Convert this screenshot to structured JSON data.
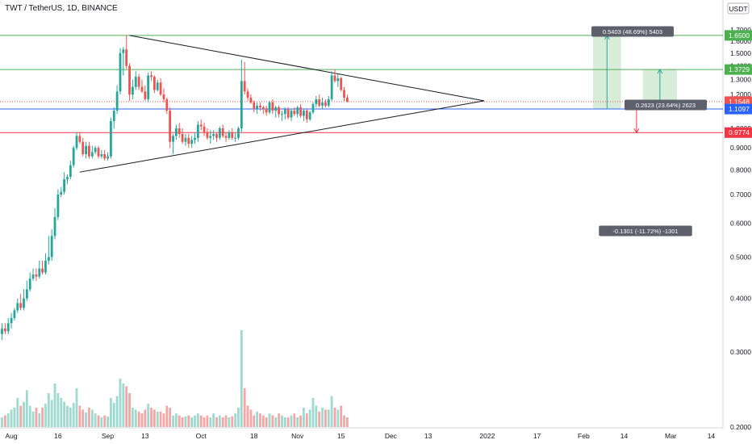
{
  "header": {
    "title": "TWT / TetherUS, 1D, BINANCE"
  },
  "axis": {
    "currency": "USDT",
    "yticks": [
      "1.7000",
      "1.6000",
      "1.5000",
      "1.4000",
      "1.3000",
      "1.2000",
      "1.1000",
      "1.0000",
      "0.9000",
      "0.8000",
      "0.7000",
      "0.6000",
      "0.5000",
      "0.4000",
      "0.3000",
      "0.2000"
    ],
    "xticks": [
      "Aug",
      "16",
      "Sep",
      "13",
      "Oct",
      "18",
      "Nov",
      "15",
      "Dec",
      "13",
      "2022",
      "17",
      "Feb",
      "14",
      "Mar",
      "14"
    ]
  },
  "price_labels": {
    "target2": "1.6500",
    "target1": "1.3729",
    "current": "1.1548",
    "entry": "1.1097",
    "stop": "0.9774"
  },
  "annotations": {
    "long2": "0.5403 (48.69%) 5403",
    "long1": "0.2623 (23.64%) 2623",
    "short": "-0.1301 (-11.72%) -1301"
  },
  "colors": {
    "up": "#26a69a",
    "down": "#ef5350",
    "green_line": "#4caf50",
    "blue_line": "#2962ff",
    "red_line": "#f23645",
    "vol_up": "#9ed9d0",
    "vol_down": "#f4a6a5"
  },
  "chart_data": {
    "type": "candlestick",
    "x": [
      "2021-07-29",
      "2021-07-30",
      "2021-07-31",
      "2021-08-01",
      "2021-08-02",
      "2021-08-03",
      "2021-08-04",
      "2021-08-05",
      "2021-08-06",
      "2021-08-07",
      "2021-08-08",
      "2021-08-09",
      "2021-08-10",
      "2021-08-11",
      "2021-08-12",
      "2021-08-13",
      "2021-08-14",
      "2021-08-15",
      "2021-08-16",
      "2021-08-17",
      "2021-08-18",
      "2021-08-19",
      "2021-08-20",
      "2021-08-21",
      "2021-08-22",
      "2021-08-23",
      "2021-08-24",
      "2021-08-25",
      "2021-08-26",
      "2021-08-27",
      "2021-08-28",
      "2021-08-29",
      "2021-08-30",
      "2021-08-31",
      "2021-09-01",
      "2021-09-02",
      "2021-09-03",
      "2021-09-04",
      "2021-09-05",
      "2021-09-06",
      "2021-09-07",
      "2021-09-08",
      "2021-09-09",
      "2021-09-10",
      "2021-09-11",
      "2021-09-12",
      "2021-09-13",
      "2021-09-14",
      "2021-09-15",
      "2021-09-16",
      "2021-09-17",
      "2021-09-18",
      "2021-09-19",
      "2021-09-20",
      "2021-09-21",
      "2021-09-22",
      "2021-09-23",
      "2021-09-24",
      "2021-09-25",
      "2021-09-26",
      "2021-09-27",
      "2021-09-28",
      "2021-09-29",
      "2021-09-30",
      "2021-10-01",
      "2021-10-02",
      "2021-10-03",
      "2021-10-04",
      "2021-10-05",
      "2021-10-06",
      "2021-10-07",
      "2021-10-08",
      "2021-10-09",
      "2021-10-10",
      "2021-10-11",
      "2021-10-12",
      "2021-10-13",
      "2021-10-14",
      "2021-10-15",
      "2021-10-16",
      "2021-10-17",
      "2021-10-18",
      "2021-10-19",
      "2021-10-20",
      "2021-10-21",
      "2021-10-22",
      "2021-10-23",
      "2021-10-24",
      "2021-10-25",
      "2021-10-26",
      "2021-10-27",
      "2021-10-28",
      "2021-10-29",
      "2021-10-30",
      "2021-10-31",
      "2021-11-01",
      "2021-11-02",
      "2021-11-03",
      "2021-11-04",
      "2021-11-05",
      "2021-11-06",
      "2021-11-07",
      "2021-11-08",
      "2021-11-09",
      "2021-11-10",
      "2021-11-11",
      "2021-11-12",
      "2021-11-13",
      "2021-11-14",
      "2021-11-15",
      "2021-11-16",
      "2021-11-17"
    ],
    "open": [
      0.33,
      0.34,
      0.335,
      0.35,
      0.36,
      0.375,
      0.39,
      0.38,
      0.4,
      0.42,
      0.445,
      0.455,
      0.45,
      0.47,
      0.46,
      0.49,
      0.5,
      0.56,
      0.62,
      0.7,
      0.71,
      0.76,
      0.77,
      0.82,
      0.9,
      0.96,
      0.93,
      0.87,
      0.91,
      0.86,
      0.88,
      0.9,
      0.86,
      0.87,
      0.85,
      0.86,
      1.04,
      1.1,
      1.22,
      1.5,
      1.53,
      1.4,
      1.2,
      1.25,
      1.32,
      1.25,
      1.22,
      1.17,
      1.33,
      1.32,
      1.23,
      1.28,
      1.2,
      1.17,
      1.1,
      0.93,
      0.96,
      1.0,
      0.97,
      0.93,
      0.95,
      0.92,
      0.94,
      0.95,
      1.02,
      1.01,
      0.98,
      0.95,
      0.96,
      0.97,
      0.95,
      1.0,
      0.96,
      0.95,
      0.98,
      0.95,
      0.95,
      1.0,
      1.29,
      1.22,
      1.18,
      1.15,
      1.11,
      1.13,
      1.12,
      1.11,
      1.09,
      1.15,
      1.1,
      1.12,
      1.08,
      1.08,
      1.11,
      1.06,
      1.1,
      1.08,
      1.12,
      1.07,
      1.1,
      1.05,
      1.09,
      1.14,
      1.17,
      1.13,
      1.15,
      1.13,
      1.17,
      1.33,
      1.29,
      1.31,
      1.23,
      1.18
    ],
    "high": [
      0.35,
      0.35,
      0.36,
      0.37,
      0.38,
      0.4,
      0.41,
      0.42,
      0.44,
      0.46,
      0.47,
      0.47,
      0.49,
      0.49,
      0.51,
      0.56,
      0.58,
      0.65,
      0.72,
      0.73,
      0.79,
      0.78,
      0.84,
      0.91,
      0.98,
      0.98,
      0.95,
      0.93,
      0.93,
      0.91,
      0.91,
      0.91,
      0.89,
      0.89,
      0.88,
      1.06,
      1.12,
      1.26,
      1.54,
      1.55,
      1.65,
      1.42,
      1.3,
      1.36,
      1.34,
      1.3,
      1.26,
      1.35,
      1.36,
      1.33,
      1.3,
      1.31,
      1.24,
      1.18,
      1.12,
      0.97,
      1.02,
      1.03,
      1.0,
      0.97,
      0.97,
      0.96,
      0.98,
      1.04,
      1.05,
      1.03,
      1.0,
      0.99,
      0.99,
      0.98,
      1.01,
      1.02,
      0.98,
      0.99,
      1.0,
      0.98,
      1.01,
      1.45,
      1.43,
      1.24,
      1.2,
      1.16,
      1.15,
      1.15,
      1.13,
      1.13,
      1.16,
      1.17,
      1.13,
      1.13,
      1.1,
      1.12,
      1.12,
      1.11,
      1.12,
      1.13,
      1.14,
      1.11,
      1.11,
      1.1,
      1.15,
      1.19,
      1.2,
      1.18,
      1.17,
      1.19,
      1.36,
      1.37,
      1.34,
      1.32,
      1.25,
      1.2
    ],
    "low": [
      0.32,
      0.33,
      0.33,
      0.34,
      0.355,
      0.37,
      0.375,
      0.375,
      0.395,
      0.415,
      0.44,
      0.44,
      0.445,
      0.455,
      0.455,
      0.48,
      0.49,
      0.55,
      0.61,
      0.69,
      0.7,
      0.74,
      0.76,
      0.81,
      0.89,
      0.92,
      0.86,
      0.85,
      0.85,
      0.85,
      0.87,
      0.85,
      0.85,
      0.84,
      0.84,
      0.85,
      1.0,
      1.08,
      1.2,
      1.33,
      1.38,
      1.16,
      1.17,
      1.23,
      1.23,
      1.21,
      1.16,
      1.15,
      1.29,
      1.21,
      1.22,
      1.19,
      1.15,
      1.08,
      0.9,
      0.87,
      0.94,
      0.95,
      0.92,
      0.91,
      0.9,
      0.9,
      0.92,
      0.93,
      0.99,
      0.96,
      0.94,
      0.92,
      0.94,
      0.93,
      0.94,
      0.95,
      0.93,
      0.94,
      0.94,
      0.93,
      0.94,
      0.98,
      1.2,
      1.16,
      1.14,
      1.09,
      1.08,
      1.1,
      1.08,
      1.07,
      1.08,
      1.08,
      1.06,
      1.06,
      1.04,
      1.05,
      1.05,
      1.04,
      1.07,
      1.06,
      1.06,
      1.04,
      1.03,
      1.04,
      1.08,
      1.12,
      1.12,
      1.11,
      1.12,
      1.12,
      1.16,
      1.28,
      1.25,
      1.22,
      1.16,
      1.15
    ],
    "close": [
      0.34,
      0.335,
      0.35,
      0.36,
      0.375,
      0.39,
      0.38,
      0.4,
      0.42,
      0.445,
      0.455,
      0.45,
      0.47,
      0.46,
      0.49,
      0.5,
      0.56,
      0.62,
      0.7,
      0.71,
      0.76,
      0.77,
      0.82,
      0.9,
      0.96,
      0.93,
      0.87,
      0.91,
      0.86,
      0.88,
      0.9,
      0.86,
      0.87,
      0.85,
      0.86,
      1.04,
      1.1,
      1.22,
      1.5,
      1.53,
      1.4,
      1.2,
      1.25,
      1.32,
      1.25,
      1.22,
      1.17,
      1.33,
      1.32,
      1.23,
      1.28,
      1.2,
      1.17,
      1.1,
      0.93,
      0.96,
      1.0,
      0.97,
      0.93,
      0.95,
      0.92,
      0.94,
      0.95,
      1.02,
      1.01,
      0.98,
      0.95,
      0.96,
      0.97,
      0.95,
      1.0,
      0.96,
      0.95,
      0.98,
      0.95,
      0.95,
      1.0,
      1.29,
      1.22,
      1.18,
      1.15,
      1.11,
      1.13,
      1.12,
      1.11,
      1.09,
      1.15,
      1.1,
      1.12,
      1.08,
      1.08,
      1.11,
      1.06,
      1.1,
      1.08,
      1.12,
      1.07,
      1.1,
      1.05,
      1.09,
      1.14,
      1.17,
      1.13,
      1.15,
      1.13,
      1.17,
      1.33,
      1.29,
      1.31,
      1.23,
      1.18,
      1.155
    ],
    "volume_rel": [
      0.1,
      0.12,
      0.14,
      0.18,
      0.2,
      0.3,
      0.22,
      0.26,
      0.38,
      0.22,
      0.16,
      0.2,
      0.14,
      0.2,
      0.24,
      0.35,
      0.28,
      0.45,
      0.35,
      0.3,
      0.26,
      0.22,
      0.2,
      0.25,
      0.4,
      0.22,
      0.18,
      0.15,
      0.2,
      0.18,
      0.14,
      0.12,
      0.1,
      0.12,
      0.11,
      0.3,
      0.25,
      0.32,
      0.5,
      0.45,
      0.42,
      0.35,
      0.2,
      0.18,
      0.16,
      0.14,
      0.18,
      0.24,
      0.2,
      0.18,
      0.16,
      0.16,
      0.14,
      0.22,
      0.2,
      0.12,
      0.14,
      0.12,
      0.1,
      0.11,
      0.12,
      0.1,
      0.12,
      0.14,
      0.12,
      0.1,
      0.12,
      0.1,
      0.14,
      0.1,
      0.12,
      0.1,
      0.12,
      0.1,
      0.11,
      0.14,
      0.2,
      1.0,
      0.4,
      0.22,
      0.18,
      0.12,
      0.16,
      0.14,
      0.12,
      0.1,
      0.14,
      0.12,
      0.1,
      0.14,
      0.12,
      0.1,
      0.1,
      0.12,
      0.14,
      0.1,
      0.12,
      0.2,
      0.14,
      0.18,
      0.3,
      0.22,
      0.16,
      0.2,
      0.18,
      0.18,
      0.32,
      0.2,
      0.18,
      0.22,
      0.12,
      0.1
    ],
    "y_scale": "log",
    "ylim": [
      0.19,
      1.75
    ],
    "xlim": [
      "2021-07-29",
      "2022-03-19"
    ],
    "lines": [
      {
        "kind": "horizontal",
        "value": 1.65,
        "color": "#4caf50"
      },
      {
        "kind": "horizontal",
        "value": 1.3729,
        "color": "#4caf50"
      },
      {
        "kind": "horizontal",
        "value": 1.1097,
        "color": "#2962ff"
      },
      {
        "kind": "horizontal",
        "value": 0.9774,
        "color": "#f23645"
      },
      {
        "kind": "horizontal-dotted",
        "value": 1.1548,
        "color": "#ef5350"
      }
    ],
    "triangle": {
      "upper": [
        [
          "2021-09-08",
          1.65
        ],
        [
          "2021-12-31",
          1.16
        ]
      ],
      "lower": [
        [
          "2021-08-23",
          0.79
        ],
        [
          "2021-12-31",
          1.16
        ]
      ]
    },
    "positions": [
      {
        "from": "2022-02-04",
        "to": "2022-02-13",
        "entry": 1.1097,
        "target": 1.65
      },
      {
        "from": "2022-02-20",
        "to": "2022-03-03",
        "entry": 1.1097,
        "target": 1.3729
      },
      {
        "from": "2022-02-18",
        "to": "2022-02-18",
        "entry": 1.1097,
        "target": 0.9774
      }
    ]
  }
}
